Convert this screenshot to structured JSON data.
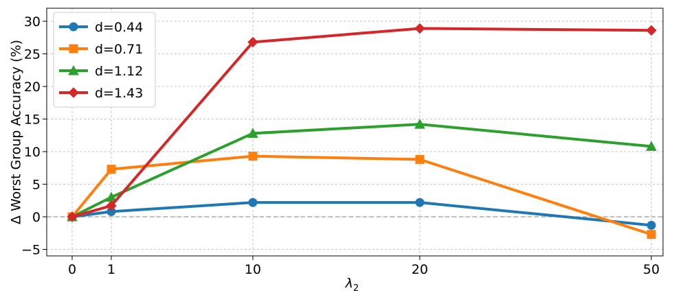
{
  "chart_data": {
    "type": "line",
    "title": "",
    "xlabel": "λ",
    "xlabel_sub": "2",
    "ylabel": "Δ Worst Group Accuracy (%)",
    "x": [
      0,
      1,
      10,
      20,
      50
    ],
    "x_tick_labels": [
      "0",
      "1",
      "10",
      "20",
      "50"
    ],
    "x_scale": "categorical-spacing (0, 1, 10, 20, 50)",
    "ylim": [
      -6,
      32
    ],
    "y_ticks": [
      -5,
      0,
      5,
      10,
      15,
      20,
      25,
      30
    ],
    "y_tick_labels": [
      "−5",
      "0",
      "5",
      "10",
      "15",
      "20",
      "25",
      "30"
    ],
    "grid": true,
    "zero_line": true,
    "legend_position": "top-left",
    "series": [
      {
        "name": "d=0.44",
        "color": "#1f77b4",
        "marker": "circle",
        "values": [
          0.0,
          0.8,
          2.2,
          2.2,
          -1.3
        ]
      },
      {
        "name": "d=0.71",
        "color": "#ff7f0e",
        "marker": "square",
        "values": [
          0.0,
          7.3,
          9.3,
          8.8,
          -2.7
        ]
      },
      {
        "name": "d=1.12",
        "color": "#2ca02c",
        "marker": "triangle",
        "values": [
          0.0,
          3.0,
          12.8,
          14.2,
          10.8
        ]
      },
      {
        "name": "d=1.43",
        "color": "#d62728",
        "marker": "diamond",
        "values": [
          0.0,
          1.7,
          26.8,
          28.9,
          28.6
        ]
      }
    ]
  }
}
